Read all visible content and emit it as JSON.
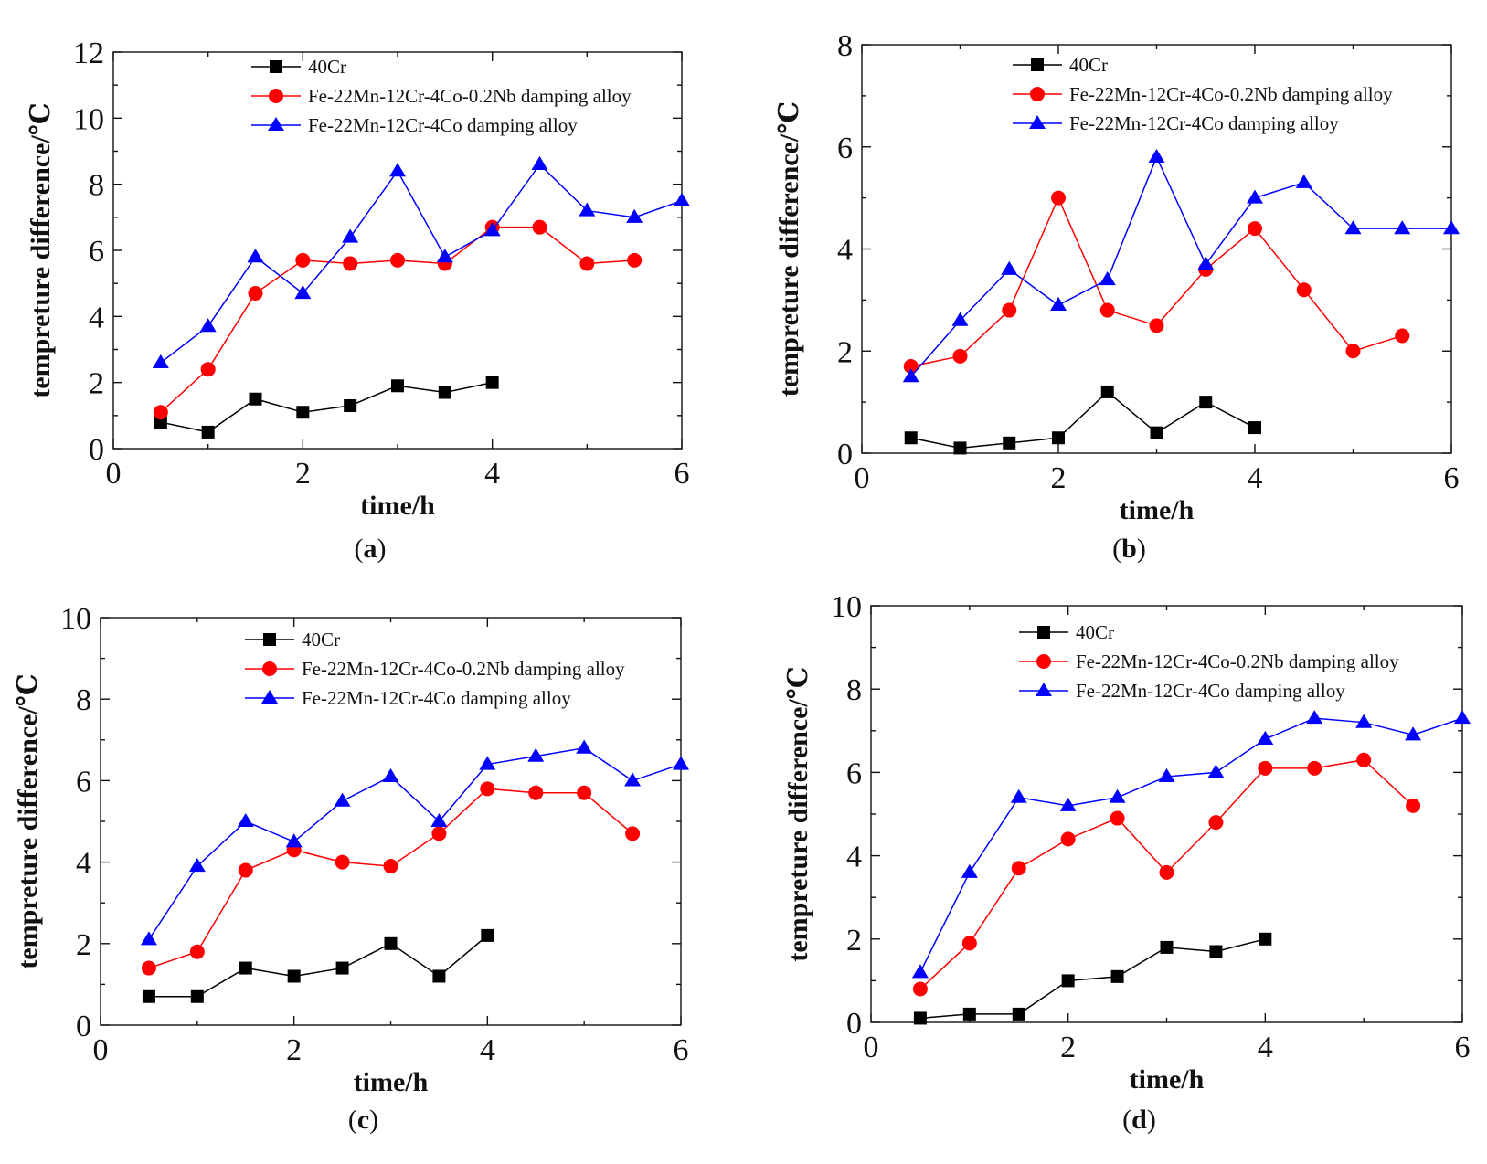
{
  "chart_data": [
    {
      "type": "line",
      "panel": "a",
      "xlabel": "time/h",
      "ylabel": "tempreture difference/℃",
      "xlim": [
        0,
        6
      ],
      "ylim": [
        0,
        12
      ],
      "xticks": [
        0,
        2,
        4,
        6
      ],
      "yticks": [
        0,
        2,
        4,
        6,
        8,
        10,
        12
      ],
      "legend_position": "top-center",
      "series": [
        {
          "name": "40Cr",
          "color": "#000000",
          "marker": "square",
          "x": [
            0.5,
            1,
            1.5,
            2,
            2.5,
            3,
            3.5,
            4
          ],
          "values": [
            0.8,
            0.5,
            1.5,
            1.1,
            1.3,
            1.9,
            1.7,
            2.0
          ]
        },
        {
          "name": "Fe-22Mn-12Cr-4Co-0.2Nb damping alloy",
          "color": "#ff0000",
          "marker": "circle",
          "x": [
            0.5,
            1,
            1.5,
            2,
            2.5,
            3,
            3.5,
            4,
            4.5,
            5,
            5.5
          ],
          "values": [
            1.1,
            2.4,
            4.7,
            5.7,
            5.6,
            5.7,
            5.6,
            6.7,
            6.7,
            5.6,
            5.7
          ]
        },
        {
          "name": "Fe-22Mn-12Cr-4Co damping alloy",
          "color": "#0000ff",
          "marker": "triangle",
          "x": [
            0.5,
            1,
            1.5,
            2,
            2.5,
            3,
            3.5,
            4,
            4.5,
            5,
            5.5,
            6
          ],
          "values": [
            2.6,
            3.7,
            5.8,
            4.7,
            6.4,
            8.4,
            5.8,
            6.6,
            8.6,
            7.2,
            7.0,
            7.5
          ]
        }
      ]
    },
    {
      "type": "line",
      "panel": "b",
      "xlabel": "time/h",
      "ylabel": "tempreture difference/℃",
      "xlim": [
        0,
        6
      ],
      "ylim": [
        0,
        8
      ],
      "xticks": [
        0,
        2,
        4,
        6
      ],
      "yticks": [
        0,
        2,
        4,
        6,
        8
      ],
      "legend_position": "top-center",
      "series": [
        {
          "name": "40Cr",
          "color": "#000000",
          "marker": "square",
          "x": [
            0.5,
            1,
            1.5,
            2,
            2.5,
            3,
            3.5,
            4
          ],
          "values": [
            0.3,
            0.1,
            0.2,
            0.3,
            1.2,
            0.4,
            1.0,
            0.5
          ]
        },
        {
          "name": "Fe-22Mn-12Cr-4Co-0.2Nb damping alloy",
          "color": "#ff0000",
          "marker": "circle",
          "x": [
            0.5,
            1,
            1.5,
            2,
            2.5,
            3,
            3.5,
            4,
            4.5,
            5,
            5.5
          ],
          "values": [
            1.7,
            1.9,
            2.8,
            5.0,
            2.8,
            2.5,
            3.6,
            4.4,
            3.2,
            2.0,
            2.3
          ]
        },
        {
          "name": "Fe-22Mn-12Cr-4Co damping alloy",
          "color": "#0000ff",
          "marker": "triangle",
          "x": [
            0.5,
            1,
            1.5,
            2,
            2.5,
            3,
            3.5,
            4,
            4.5,
            5,
            5.5,
            6
          ],
          "values": [
            1.5,
            2.6,
            3.6,
            2.9,
            3.4,
            5.8,
            3.7,
            5.0,
            5.3,
            4.4,
            4.4,
            4.4
          ]
        }
      ]
    },
    {
      "type": "line",
      "panel": "c",
      "xlabel": "time/h",
      "ylabel": "tempreture difference/℃",
      "xlim": [
        0,
        6
      ],
      "ylim": [
        0,
        10
      ],
      "xticks": [
        0,
        2,
        4,
        6
      ],
      "yticks": [
        0,
        2,
        4,
        6,
        8,
        10
      ],
      "legend_position": "top-center",
      "series": [
        {
          "name": "40Cr",
          "color": "#000000",
          "marker": "square",
          "x": [
            0.5,
            1,
            1.5,
            2,
            2.5,
            3,
            3.5,
            4
          ],
          "values": [
            0.7,
            0.7,
            1.4,
            1.2,
            1.4,
            2.0,
            1.2,
            2.2
          ]
        },
        {
          "name": "Fe-22Mn-12Cr-4Co-0.2Nb damping alloy",
          "color": "#ff0000",
          "marker": "circle",
          "x": [
            0.5,
            1,
            1.5,
            2,
            2.5,
            3,
            3.5,
            4,
            4.5,
            5,
            5.5
          ],
          "values": [
            1.4,
            1.8,
            3.8,
            4.3,
            4.0,
            3.9,
            4.7,
            5.8,
            5.7,
            5.7,
            4.7
          ]
        },
        {
          "name": "Fe-22Mn-12Cr-4Co damping alloy",
          "color": "#0000ff",
          "marker": "triangle",
          "x": [
            0.5,
            1,
            1.5,
            2,
            2.5,
            3,
            3.5,
            4,
            4.5,
            5,
            5.5,
            6
          ],
          "values": [
            2.1,
            3.9,
            5.0,
            4.5,
            5.5,
            6.1,
            5.0,
            6.4,
            6.6,
            6.8,
            6.0,
            6.4
          ]
        }
      ]
    },
    {
      "type": "line",
      "panel": "d",
      "xlabel": "time/h",
      "ylabel": "tempreture difference/℃",
      "xlim": [
        0,
        6
      ],
      "ylim": [
        0,
        10
      ],
      "xticks": [
        0,
        2,
        4,
        6
      ],
      "yticks": [
        0,
        2,
        4,
        6,
        8,
        10
      ],
      "legend_position": "top-center",
      "series": [
        {
          "name": "40Cr",
          "color": "#000000",
          "marker": "square",
          "x": [
            0.5,
            1,
            1.5,
            2,
            2.5,
            3,
            3.5,
            4
          ],
          "values": [
            0.1,
            0.2,
            0.2,
            1.0,
            1.1,
            1.8,
            1.7,
            2.0
          ]
        },
        {
          "name": "Fe-22Mn-12Cr-4Co-0.2Nb damping alloy",
          "color": "#ff0000",
          "marker": "circle",
          "x": [
            0.5,
            1,
            1.5,
            2,
            2.5,
            3,
            3.5,
            4,
            4.5,
            5,
            5.5
          ],
          "values": [
            0.8,
            1.9,
            3.7,
            4.4,
            4.9,
            3.6,
            4.8,
            6.1,
            6.1,
            6.3,
            5.2
          ]
        },
        {
          "name": "Fe-22Mn-12Cr-4Co damping alloy",
          "color": "#0000ff",
          "marker": "triangle",
          "x": [
            0.5,
            1,
            1.5,
            2,
            2.5,
            3,
            3.5,
            4,
            4.5,
            5,
            5.5,
            6
          ],
          "values": [
            1.2,
            3.6,
            5.4,
            5.2,
            5.4,
            5.9,
            6.0,
            6.8,
            7.3,
            7.2,
            6.9,
            7.3
          ]
        }
      ]
    }
  ]
}
